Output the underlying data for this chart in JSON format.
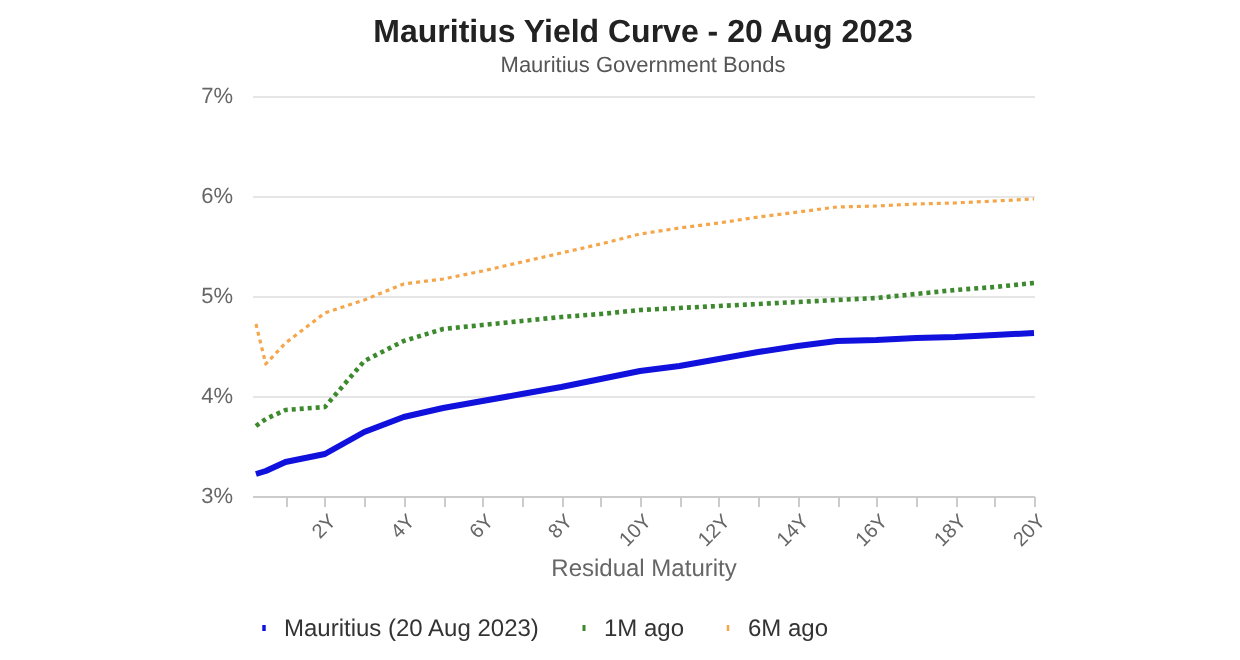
{
  "chart_data": {
    "type": "line",
    "title": "Mauritius Yield Curve - 20 Aug 2023",
    "subtitle": "Mauritius Government Bonds",
    "xlabel": "Residual Maturity",
    "x": [
      0.25,
      0.5,
      1,
      2,
      3,
      4,
      5,
      6,
      7,
      8,
      9,
      10,
      11,
      12,
      13,
      14,
      15,
      16,
      17,
      18,
      19,
      20
    ],
    "series": [
      {
        "name": "Mauritius (20 Aug 2023)",
        "color": "#1111dd",
        "line_style": "solid",
        "values": [
          3.22,
          3.25,
          3.34,
          3.42,
          3.64,
          3.79,
          3.88,
          3.95,
          4.02,
          4.09,
          4.17,
          4.25,
          4.3,
          4.37,
          4.44,
          4.5,
          4.55,
          4.56,
          4.58,
          4.59,
          4.61,
          4.63
        ]
      },
      {
        "name": "1M ago",
        "color": "#3d8a2e",
        "line_style": "dotted",
        "values": [
          3.7,
          3.77,
          3.86,
          3.89,
          4.35,
          4.55,
          4.67,
          4.71,
          4.75,
          4.79,
          4.82,
          4.86,
          4.88,
          4.9,
          4.92,
          4.94,
          4.96,
          4.98,
          5.02,
          5.06,
          5.09,
          5.13
        ]
      },
      {
        "name": "6M ago",
        "color": "#f5a64a",
        "line_style": "dotted",
        "values": [
          4.72,
          4.32,
          4.53,
          4.83,
          4.96,
          5.12,
          5.17,
          5.25,
          5.34,
          5.43,
          5.52,
          5.62,
          5.68,
          5.73,
          5.79,
          5.84,
          5.89,
          5.9,
          5.92,
          5.93,
          5.95,
          5.97
        ]
      }
    ],
    "xlim": [
      0.15,
      20
    ],
    "xticks": [
      {
        "value": 1,
        "label": null
      },
      {
        "value": 2,
        "label": "2Y"
      },
      {
        "value": 3,
        "label": null
      },
      {
        "value": 4,
        "label": "4Y"
      },
      {
        "value": 5,
        "label": null
      },
      {
        "value": 6,
        "label": "6Y"
      },
      {
        "value": 7,
        "label": null
      },
      {
        "value": 8,
        "label": "8Y"
      },
      {
        "value": 9,
        "label": null
      },
      {
        "value": 10,
        "label": "10Y"
      },
      {
        "value": 11,
        "label": null
      },
      {
        "value": 12,
        "label": "12Y"
      },
      {
        "value": 13,
        "label": null
      },
      {
        "value": 14,
        "label": "14Y"
      },
      {
        "value": 15,
        "label": null
      },
      {
        "value": 16,
        "label": "16Y"
      },
      {
        "value": 17,
        "label": null
      },
      {
        "value": 18,
        "label": "18Y"
      },
      {
        "value": 19,
        "label": null
      },
      {
        "value": 20,
        "label": "20Y"
      }
    ],
    "ylim": [
      3,
      7
    ],
    "yticks": [
      {
        "value": 3,
        "label": "3%"
      },
      {
        "value": 4,
        "label": "4%"
      },
      {
        "value": 5,
        "label": "5%"
      },
      {
        "value": 6,
        "label": "6%"
      },
      {
        "value": 7,
        "label": "7%"
      }
    ],
    "grid": "y",
    "legend": "bottom",
    "marker": "none"
  }
}
